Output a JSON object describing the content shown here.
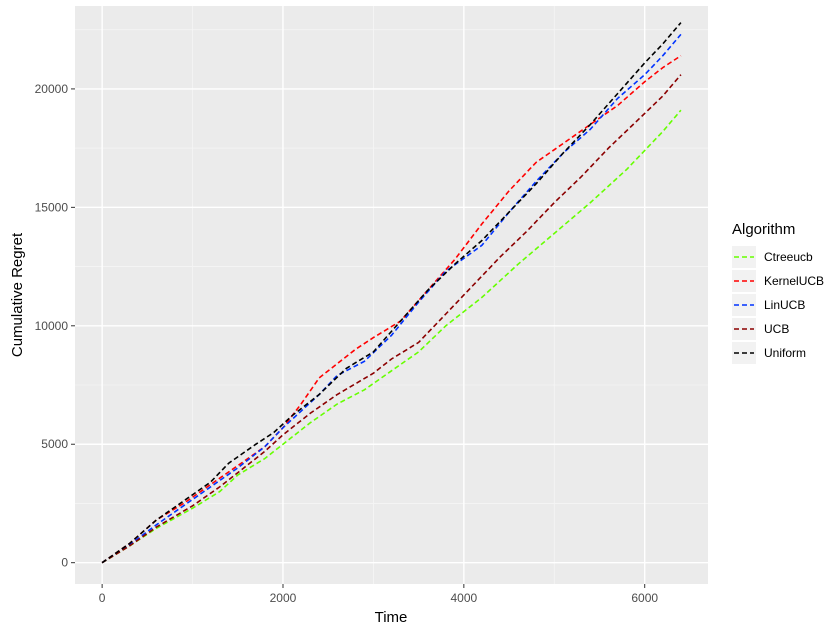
{
  "chart_data": {
    "type": "line",
    "xlabel": "Time",
    "ylabel": "Cumulative Regret",
    "xlim": [
      -300,
      6700
    ],
    "ylim": [
      -900,
      23500
    ],
    "xticks": [
      0,
      2000,
      4000,
      6000
    ],
    "yticks": [
      0,
      5000,
      10000,
      15000,
      20000
    ],
    "xtick_labels": [
      "0",
      "2000",
      "4000",
      "6000"
    ],
    "ytick_labels": [
      "0",
      "5000",
      "10000",
      "15000",
      "20000"
    ],
    "grid": true,
    "line_style": "dashed",
    "panel_background": "#EBEBEB",
    "legend": {
      "title": "Algorithm",
      "position": "right"
    },
    "series": [
      {
        "name": "Ctreeucb",
        "color": "#66FF00",
        "points": [
          [
            0,
            0
          ],
          [
            300,
            700
          ],
          [
            600,
            1450
          ],
          [
            1000,
            2300
          ],
          [
            1300,
            3000
          ],
          [
            1500,
            3700
          ],
          [
            1800,
            4400
          ],
          [
            2000,
            5000
          ],
          [
            2300,
            5900
          ],
          [
            2600,
            6700
          ],
          [
            2900,
            7300
          ],
          [
            3200,
            8100
          ],
          [
            3500,
            8900
          ],
          [
            3800,
            10000
          ],
          [
            4200,
            11200
          ],
          [
            4600,
            12600
          ],
          [
            5000,
            13900
          ],
          [
            5400,
            15200
          ],
          [
            5800,
            16600
          ],
          [
            6200,
            18200
          ],
          [
            6400,
            19100
          ]
        ]
      },
      {
        "name": "KernelUCB",
        "color": "#FF0000",
        "points": [
          [
            0,
            0
          ],
          [
            300,
            800
          ],
          [
            600,
            1800
          ],
          [
            900,
            2500
          ],
          [
            1200,
            3300
          ],
          [
            1500,
            4100
          ],
          [
            1800,
            4900
          ],
          [
            2000,
            5700
          ],
          [
            2200,
            6700
          ],
          [
            2400,
            7800
          ],
          [
            2600,
            8400
          ],
          [
            2800,
            9000
          ],
          [
            3000,
            9500
          ],
          [
            3300,
            10200
          ],
          [
            3600,
            11500
          ],
          [
            3900,
            12800
          ],
          [
            4200,
            14300
          ],
          [
            4500,
            15700
          ],
          [
            4800,
            16900
          ],
          [
            5100,
            17700
          ],
          [
            5400,
            18500
          ],
          [
            5700,
            19300
          ],
          [
            6000,
            20300
          ],
          [
            6200,
            20900
          ],
          [
            6400,
            21400
          ]
        ]
      },
      {
        "name": "LinUCB",
        "color": "#0033FF",
        "points": [
          [
            0,
            0
          ],
          [
            300,
            750
          ],
          [
            600,
            1600
          ],
          [
            900,
            2400
          ],
          [
            1200,
            3200
          ],
          [
            1500,
            4000
          ],
          [
            1800,
            4900
          ],
          [
            2000,
            5700
          ],
          [
            2200,
            6400
          ],
          [
            2400,
            7100
          ],
          [
            2600,
            7900
          ],
          [
            2900,
            8500
          ],
          [
            3200,
            9600
          ],
          [
            3500,
            11000
          ],
          [
            3800,
            12300
          ],
          [
            4200,
            13400
          ],
          [
            4500,
            14800
          ],
          [
            4800,
            16100
          ],
          [
            5100,
            17300
          ],
          [
            5400,
            18300
          ],
          [
            5700,
            19600
          ],
          [
            6000,
            20600
          ],
          [
            6200,
            21400
          ],
          [
            6400,
            22300
          ]
        ]
      },
      {
        "name": "UCB",
        "color": "#8B0000",
        "points": [
          [
            0,
            0
          ],
          [
            300,
            700
          ],
          [
            600,
            1500
          ],
          [
            1000,
            2400
          ],
          [
            1300,
            3200
          ],
          [
            1600,
            4100
          ],
          [
            1800,
            4700
          ],
          [
            2000,
            5400
          ],
          [
            2300,
            6300
          ],
          [
            2600,
            7100
          ],
          [
            3000,
            8000
          ],
          [
            3200,
            8600
          ],
          [
            3500,
            9300
          ],
          [
            3800,
            10500
          ],
          [
            4100,
            11700
          ],
          [
            4400,
            12900
          ],
          [
            4700,
            14000
          ],
          [
            5000,
            15200
          ],
          [
            5300,
            16300
          ],
          [
            5600,
            17500
          ],
          [
            5900,
            18600
          ],
          [
            6200,
            19700
          ],
          [
            6400,
            20600
          ]
        ]
      },
      {
        "name": "Uniform",
        "color": "#000000",
        "points": [
          [
            0,
            0
          ],
          [
            300,
            800
          ],
          [
            600,
            1800
          ],
          [
            900,
            2600
          ],
          [
            1200,
            3400
          ],
          [
            1400,
            4200
          ],
          [
            1700,
            5000
          ],
          [
            1900,
            5500
          ],
          [
            2100,
            6200
          ],
          [
            2400,
            7100
          ],
          [
            2700,
            8200
          ],
          [
            3000,
            8900
          ],
          [
            3300,
            10200
          ],
          [
            3600,
            11500
          ],
          [
            3900,
            12600
          ],
          [
            4200,
            13600
          ],
          [
            4500,
            14800
          ],
          [
            4800,
            16000
          ],
          [
            5100,
            17300
          ],
          [
            5400,
            18500
          ],
          [
            5700,
            19800
          ],
          [
            6000,
            21100
          ],
          [
            6200,
            21900
          ],
          [
            6400,
            22800
          ]
        ]
      }
    ]
  }
}
